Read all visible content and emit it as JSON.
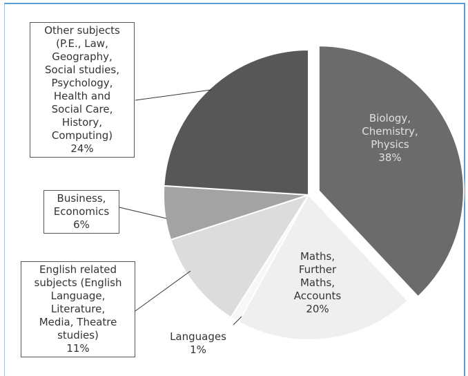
{
  "chart_data": {
    "type": "pie",
    "categories": [
      "Biology,\nChemistry,\nPhysics",
      "Maths,\nFurther\nMaths,\nAccounts",
      "Languages",
      "English related\nsubjects (English\nLanguage,\nLiterature,\nMedia, Theatre\nstudies)",
      "Business,\nEconomics",
      "Other subjects\n(P.E., Law,\nGeography,\nSocial studies,\nPsychology,\nHealth and\nSocial Care,\nHistory,\nComputing)"
    ],
    "values": [
      38,
      20,
      1,
      11,
      6,
      24
    ],
    "value_labels": [
      "38%",
      "20%",
      "1%",
      "11%",
      "6%",
      "24%"
    ],
    "colors": [
      "#6b6b6b",
      "#efefef",
      "#f7f7f7",
      "#dcdcdc",
      "#a3a3a3",
      "#575757"
    ]
  }
}
